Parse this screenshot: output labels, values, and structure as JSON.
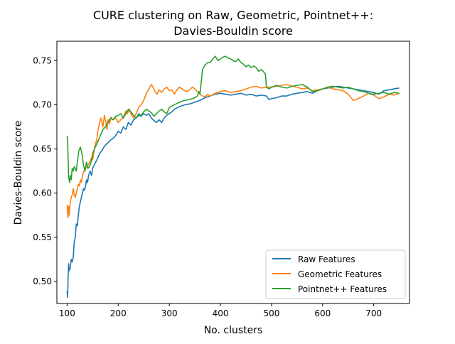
{
  "chart_data": {
    "type": "line",
    "title_line1": "CURE clustering on Raw, Geometric, Pointnet++:",
    "title_line2": "Davies-Bouldin score",
    "xlabel": "No. clusters",
    "ylabel": "Davies-Bouldin score",
    "xlim": [
      80,
      770
    ],
    "ylim": [
      0.475,
      0.772
    ],
    "xticks": [
      100,
      200,
      300,
      400,
      500,
      600,
      700
    ],
    "yticks": [
      0.5,
      0.55,
      0.6,
      0.65,
      0.7,
      0.75
    ],
    "xtick_labels": [
      "100",
      "200",
      "300",
      "400",
      "500",
      "600",
      "700"
    ],
    "ytick_labels": [
      "0.50",
      "0.55",
      "0.60",
      "0.65",
      "0.70",
      "0.75"
    ],
    "grid": false,
    "legend_position": "lower-right",
    "series": [
      {
        "name": "Raw Features",
        "color": "#1f77b4",
        "x": [
          100,
          101,
          102,
          103,
          104,
          106,
          108,
          110,
          112,
          114,
          116,
          118,
          120,
          122,
          124,
          126,
          128,
          130,
          132,
          134,
          136,
          138,
          140,
          142,
          145,
          148,
          150,
          153,
          156,
          160,
          164,
          168,
          172,
          176,
          180,
          185,
          190,
          195,
          200,
          205,
          210,
          215,
          220,
          225,
          230,
          235,
          240,
          245,
          250,
          255,
          260,
          265,
          270,
          275,
          280,
          285,
          290,
          295,
          300,
          305,
          310,
          320,
          330,
          340,
          350,
          360,
          370,
          380,
          390,
          400,
          410,
          420,
          430,
          440,
          450,
          460,
          470,
          480,
          490,
          495,
          500,
          510,
          520,
          530,
          540,
          550,
          560,
          570,
          580,
          590,
          600,
          610,
          620,
          630,
          640,
          650,
          660,
          670,
          680,
          690,
          700,
          710,
          720,
          730,
          740,
          750
        ],
        "values": [
          0.489,
          0.482,
          0.505,
          0.52,
          0.512,
          0.515,
          0.525,
          0.522,
          0.527,
          0.545,
          0.55,
          0.565,
          0.563,
          0.575,
          0.585,
          0.59,
          0.595,
          0.6,
          0.605,
          0.603,
          0.608,
          0.615,
          0.612,
          0.62,
          0.625,
          0.62,
          0.628,
          0.632,
          0.635,
          0.64,
          0.645,
          0.648,
          0.652,
          0.655,
          0.657,
          0.66,
          0.662,
          0.665,
          0.67,
          0.668,
          0.675,
          0.672,
          0.68,
          0.677,
          0.683,
          0.685,
          0.688,
          0.687,
          0.69,
          0.688,
          0.69,
          0.685,
          0.682,
          0.68,
          0.683,
          0.68,
          0.685,
          0.688,
          0.69,
          0.692,
          0.695,
          0.698,
          0.7,
          0.701,
          0.703,
          0.705,
          0.708,
          0.71,
          0.712,
          0.713,
          0.712,
          0.711,
          0.712,
          0.713,
          0.711,
          0.712,
          0.71,
          0.711,
          0.71,
          0.706,
          0.707,
          0.708,
          0.71,
          0.71,
          0.712,
          0.713,
          0.714,
          0.715,
          0.713,
          0.716,
          0.718,
          0.719,
          0.72,
          0.721,
          0.72,
          0.719,
          0.718,
          0.717,
          0.716,
          0.715,
          0.714,
          0.712,
          0.716,
          0.717,
          0.718,
          0.719
        ]
      },
      {
        "name": "Geometric Features",
        "color": "#ff7f0e",
        "x": [
          100,
          101,
          102,
          103,
          104,
          105,
          106,
          108,
          110,
          112,
          114,
          116,
          118,
          120,
          122,
          124,
          126,
          128,
          130,
          133,
          136,
          140,
          144,
          148,
          150,
          152,
          155,
          158,
          160,
          163,
          166,
          170,
          173,
          176,
          178,
          180,
          183,
          186,
          190,
          195,
          200,
          205,
          210,
          215,
          218,
          222,
          226,
          230,
          235,
          240,
          245,
          250,
          255,
          260,
          265,
          268,
          272,
          276,
          280,
          285,
          290,
          295,
          300,
          305,
          310,
          315,
          320,
          325,
          330,
          335,
          340,
          345,
          350,
          355,
          360,
          365,
          370,
          375,
          380,
          390,
          400,
          410,
          420,
          430,
          440,
          450,
          460,
          470,
          480,
          490,
          500,
          510,
          520,
          530,
          540,
          550,
          560,
          570,
          580,
          590,
          600,
          610,
          620,
          630,
          640,
          650,
          660,
          670,
          680,
          690,
          700,
          710,
          720,
          730,
          740,
          750
        ],
        "values": [
          0.587,
          0.578,
          0.572,
          0.585,
          0.575,
          0.58,
          0.59,
          0.595,
          0.598,
          0.605,
          0.598,
          0.595,
          0.6,
          0.605,
          0.61,
          0.608,
          0.615,
          0.612,
          0.62,
          0.625,
          0.628,
          0.63,
          0.635,
          0.64,
          0.638,
          0.645,
          0.655,
          0.66,
          0.67,
          0.678,
          0.685,
          0.675,
          0.688,
          0.68,
          0.672,
          0.683,
          0.678,
          0.686,
          0.683,
          0.685,
          0.68,
          0.683,
          0.686,
          0.693,
          0.69,
          0.695,
          0.688,
          0.685,
          0.69,
          0.697,
          0.7,
          0.705,
          0.713,
          0.718,
          0.723,
          0.72,
          0.715,
          0.712,
          0.717,
          0.714,
          0.718,
          0.72,
          0.716,
          0.717,
          0.712,
          0.717,
          0.72,
          0.718,
          0.716,
          0.715,
          0.717,
          0.72,
          0.718,
          0.715,
          0.712,
          0.71,
          0.709,
          0.712,
          0.71,
          0.713,
          0.715,
          0.716,
          0.714,
          0.715,
          0.716,
          0.718,
          0.72,
          0.721,
          0.719,
          0.72,
          0.72,
          0.721,
          0.722,
          0.723,
          0.721,
          0.72,
          0.718,
          0.719,
          0.716,
          0.717,
          0.718,
          0.72,
          0.718,
          0.717,
          0.716,
          0.712,
          0.705,
          0.707,
          0.71,
          0.713,
          0.711,
          0.707,
          0.709,
          0.712,
          0.711,
          0.713
        ]
      },
      {
        "name": "Pointnet++ Features",
        "color": "#2ca02c",
        "x": [
          100,
          101,
          102,
          103,
          104,
          105,
          106,
          108,
          110,
          112,
          114,
          116,
          118,
          120,
          123,
          126,
          129,
          132,
          135,
          138,
          141,
          144,
          147,
          150,
          155,
          160,
          165,
          170,
          175,
          180,
          185,
          190,
          195,
          200,
          205,
          210,
          215,
          220,
          225,
          230,
          235,
          240,
          245,
          250,
          255,
          260,
          265,
          270,
          275,
          280,
          285,
          290,
          295,
          300,
          310,
          320,
          330,
          340,
          350,
          355,
          358,
          360,
          365,
          370,
          375,
          380,
          385,
          390,
          395,
          400,
          405,
          410,
          415,
          420,
          425,
          430,
          435,
          440,
          445,
          450,
          455,
          460,
          465,
          470,
          475,
          480,
          485,
          488,
          490,
          495,
          500,
          510,
          520,
          530,
          540,
          550,
          560,
          570,
          580,
          590,
          600,
          610,
          620,
          630,
          640,
          650,
          660,
          670,
          680,
          690,
          700,
          710,
          720,
          730,
          740,
          750
        ],
        "values": [
          0.665,
          0.66,
          0.64,
          0.618,
          0.615,
          0.612,
          0.62,
          0.615,
          0.628,
          0.625,
          0.63,
          0.628,
          0.625,
          0.635,
          0.648,
          0.652,
          0.645,
          0.632,
          0.625,
          0.635,
          0.628,
          0.63,
          0.635,
          0.645,
          0.652,
          0.658,
          0.665,
          0.672,
          0.675,
          0.68,
          0.685,
          0.683,
          0.687,
          0.688,
          0.69,
          0.685,
          0.69,
          0.695,
          0.692,
          0.688,
          0.685,
          0.69,
          0.688,
          0.692,
          0.695,
          0.693,
          0.691,
          0.687,
          0.69,
          0.693,
          0.695,
          0.692,
          0.69,
          0.697,
          0.7,
          0.703,
          0.705,
          0.706,
          0.708,
          0.71,
          0.715,
          0.712,
          0.74,
          0.745,
          0.748,
          0.748,
          0.752,
          0.755,
          0.75,
          0.752,
          0.754,
          0.755,
          0.753,
          0.752,
          0.75,
          0.749,
          0.752,
          0.748,
          0.746,
          0.743,
          0.745,
          0.742,
          0.744,
          0.742,
          0.738,
          0.74,
          0.737,
          0.735,
          0.72,
          0.718,
          0.72,
          0.722,
          0.72,
          0.719,
          0.721,
          0.722,
          0.723,
          0.72,
          0.715,
          0.716,
          0.718,
          0.72,
          0.721,
          0.72,
          0.719,
          0.72,
          0.718,
          0.716,
          0.715,
          0.713,
          0.712,
          0.713,
          0.714,
          0.712,
          0.714,
          0.713
        ]
      }
    ]
  }
}
